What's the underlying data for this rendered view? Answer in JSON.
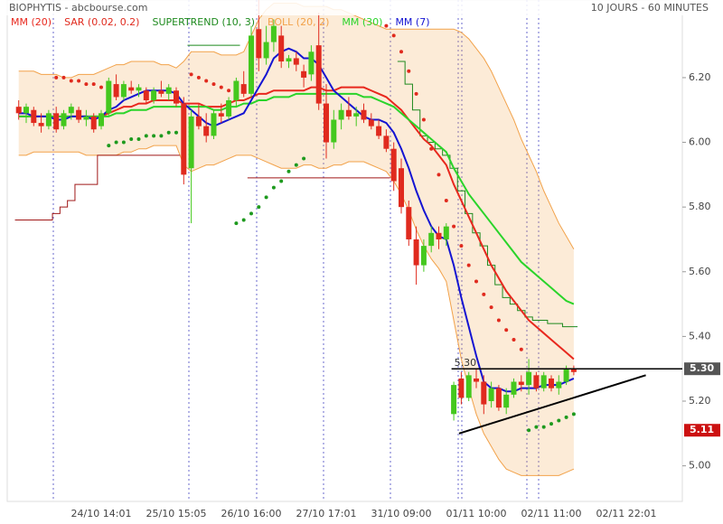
{
  "header": {
    "title": "BIOPHYTIS - abcbourse.com",
    "period": "10 JOURS - 60 MINUTES"
  },
  "chart_data": {
    "type": "candlestick",
    "categories": [
      null,
      null,
      null,
      null,
      null,
      null,
      null,
      null,
      null,
      null,
      null,
      "24/10 14:01",
      null,
      null,
      null,
      null,
      null,
      null,
      null,
      null,
      null,
      "25/10 15:05",
      null,
      null,
      null,
      null,
      null,
      null,
      null,
      null,
      null,
      "26/10 16:00",
      null,
      null,
      null,
      null,
      null,
      null,
      null,
      null,
      null,
      "27/10 17:01",
      null,
      null,
      null,
      null,
      null,
      null,
      null,
      null,
      null,
      "31/10 09:00",
      null,
      null,
      null,
      null,
      null,
      null,
      null,
      null,
      null,
      "01/11 10:00",
      null,
      null,
      null,
      null,
      null,
      null,
      null,
      null,
      null,
      "02/11 11:00",
      null,
      null,
      null,
      null,
      null,
      null,
      null,
      null,
      null,
      "02/11 22:01",
      null,
      null,
      null,
      null
    ],
    "open": [
      6.11,
      6.09,
      6.1,
      6.06,
      6.05,
      6.09,
      6.05,
      6.09,
      6.1,
      6.07,
      6.08,
      6.05,
      6.09,
      6.18,
      6.14,
      6.17,
      6.16,
      6.16,
      6.13,
      6.16,
      6.15,
      6.16,
      6.12,
      5.92,
      6.08,
      6.05,
      6.02,
      6.09,
      6.08,
      6.13,
      6.18,
      6.15,
      6.35,
      6.26,
      6.31,
      6.33,
      6.25,
      6.26,
      6.22,
      6.21,
      6.3,
      6.12,
      6.0,
      6.07,
      6.1,
      6.08,
      6.1,
      6.07,
      6.05,
      6.02,
      5.98,
      5.92,
      5.8,
      5.7,
      5.62,
      5.68,
      5.72,
      5.7,
      5.16,
      5.27,
      5.21,
      5.27,
      5.26,
      5.2,
      5.24,
      5.18,
      5.22,
      5.26,
      5.25,
      5.28,
      5.24,
      5.27,
      5.24,
      5.26,
      5.3,
      null,
      null,
      null,
      null,
      null,
      null,
      null,
      null,
      null,
      null,
      null
    ],
    "high": [
      6.13,
      6.12,
      6.11,
      6.09,
      6.1,
      6.11,
      6.1,
      6.12,
      6.11,
      6.1,
      6.09,
      6.1,
      6.2,
      6.21,
      6.19,
      6.19,
      6.18,
      6.17,
      6.17,
      6.19,
      6.18,
      6.17,
      6.14,
      6.1,
      6.12,
      6.09,
      6.1,
      6.12,
      6.14,
      6.2,
      6.22,
      6.36,
      6.44,
      6.36,
      6.38,
      6.36,
      6.27,
      6.28,
      6.24,
      6.3,
      6.4,
      6.18,
      6.1,
      6.12,
      6.14,
      6.11,
      6.12,
      6.09,
      6.07,
      6.04,
      6.0,
      5.95,
      5.82,
      5.74,
      5.7,
      5.74,
      5.74,
      5.75,
      5.26,
      5.29,
      5.29,
      5.3,
      5.28,
      5.26,
      5.25,
      5.24,
      5.27,
      5.28,
      5.33,
      5.29,
      5.29,
      5.28,
      5.28,
      5.31,
      5.31,
      null,
      null,
      null,
      null,
      null,
      null,
      null,
      null,
      null,
      null,
      null
    ],
    "low": [
      6.07,
      6.06,
      6.05,
      6.03,
      6.04,
      6.03,
      6.04,
      6.07,
      6.06,
      6.05,
      6.03,
      6.04,
      6.08,
      6.13,
      6.13,
      6.15,
      6.14,
      6.12,
      6.12,
      6.14,
      6.13,
      6.11,
      5.87,
      5.75,
      6.04,
      6.0,
      6.01,
      6.06,
      6.07,
      6.11,
      6.14,
      6.14,
      6.22,
      6.24,
      6.28,
      6.23,
      6.23,
      6.22,
      6.17,
      6.19,
      6.1,
      5.95,
      5.98,
      6.04,
      6.07,
      6.05,
      6.06,
      6.04,
      6.01,
      5.97,
      5.85,
      5.78,
      5.68,
      5.56,
      5.6,
      5.66,
      5.67,
      5.68,
      5.14,
      5.19,
      5.2,
      5.24,
      5.16,
      5.18,
      5.17,
      5.16,
      5.21,
      5.23,
      5.22,
      5.23,
      5.23,
      5.23,
      5.22,
      5.25,
      5.28,
      null,
      null,
      null,
      null,
      null,
      null,
      null,
      null,
      null,
      null,
      null
    ],
    "close": [
      6.09,
      6.11,
      6.06,
      6.05,
      6.09,
      6.04,
      6.09,
      6.11,
      6.07,
      6.08,
      6.04,
      6.09,
      6.19,
      6.14,
      6.18,
      6.16,
      6.17,
      6.13,
      6.16,
      6.15,
      6.17,
      6.12,
      5.9,
      6.08,
      6.05,
      6.02,
      6.09,
      6.08,
      6.13,
      6.19,
      6.15,
      6.33,
      6.26,
      6.31,
      6.36,
      6.25,
      6.26,
      6.24,
      6.2,
      6.28,
      6.12,
      6.0,
      6.07,
      6.1,
      6.08,
      6.09,
      6.07,
      6.05,
      6.02,
      5.98,
      5.88,
      5.8,
      5.7,
      5.62,
      5.68,
      5.72,
      5.7,
      5.74,
      5.25,
      5.21,
      5.28,
      5.26,
      5.19,
      5.24,
      5.18,
      5.22,
      5.26,
      5.25,
      5.29,
      5.24,
      5.28,
      5.24,
      5.26,
      5.3,
      5.29,
      null,
      null,
      null,
      null,
      null,
      null,
      null,
      null,
      null,
      null,
      null
    ],
    "up_color": "#44c81e",
    "down_color": "#e02a1e",
    "ylim": [
      4.89,
      6.44
    ],
    "yticks": [
      {
        "value": 5.0,
        "label": "5.00"
      },
      {
        "value": 5.2,
        "label": "5.20"
      },
      {
        "value": 5.4,
        "label": "5.40"
      },
      {
        "value": 5.6,
        "label": "5.60"
      },
      {
        "value": 5.8,
        "label": "5.80"
      },
      {
        "value": 6.0,
        "label": "6.00"
      },
      {
        "value": 6.2,
        "label": "6.20"
      }
    ],
    "indicators": [
      {
        "name": "MM (20)",
        "kind": "line",
        "color": "#e8281e",
        "values": [
          6.08,
          6.08,
          6.08,
          6.08,
          6.08,
          6.08,
          6.08,
          6.08,
          6.08,
          6.08,
          6.08,
          6.08,
          6.09,
          6.1,
          6.11,
          6.11,
          6.12,
          6.12,
          6.13,
          6.13,
          6.13,
          6.13,
          6.12,
          6.12,
          6.12,
          6.11,
          6.11,
          6.11,
          6.12,
          6.13,
          6.13,
          6.14,
          6.15,
          6.15,
          6.16,
          6.16,
          6.16,
          6.16,
          6.16,
          6.17,
          6.17,
          6.16,
          6.16,
          6.17,
          6.17,
          6.17,
          6.17,
          6.16,
          6.15,
          6.14,
          6.12,
          6.1,
          6.07,
          6.04,
          6.01,
          5.99,
          5.96,
          5.93,
          5.87,
          5.82,
          5.77,
          5.72,
          5.67,
          5.62,
          5.58,
          5.54,
          5.51,
          5.48,
          5.45,
          5.43,
          5.41,
          5.39,
          5.37,
          5.35,
          5.33,
          null,
          null,
          null,
          null,
          null,
          null,
          null,
          null,
          null,
          null,
          null
        ]
      },
      {
        "name": "SAR (0.02, 0.2)",
        "kind": "dots",
        "color": "#e02a1e",
        "color_below": "#1e9a1e",
        "values": [
          null,
          null,
          null,
          null,
          null,
          6.2,
          6.2,
          6.19,
          6.19,
          6.18,
          6.18,
          6.17,
          5.99,
          6.0,
          6.0,
          6.01,
          6.01,
          6.02,
          6.02,
          6.02,
          6.03,
          6.03,
          6.03,
          6.21,
          6.2,
          6.19,
          6.18,
          6.17,
          6.16,
          5.75,
          5.76,
          5.78,
          5.8,
          5.83,
          5.86,
          5.88,
          5.91,
          5.93,
          5.95,
          null,
          null,
          null,
          null,
          null,
          null,
          null,
          null,
          null,
          null,
          6.36,
          6.33,
          6.28,
          6.22,
          6.15,
          6.07,
          5.98,
          5.9,
          5.82,
          5.74,
          5.68,
          5.62,
          5.57,
          5.53,
          5.49,
          5.45,
          5.42,
          5.39,
          5.36,
          5.11,
          5.12,
          5.12,
          5.13,
          5.14,
          5.15,
          5.16,
          null,
          null,
          null,
          null,
          null,
          null,
          null,
          null,
          null,
          null,
          null
        ]
      },
      {
        "name": "SUPERTREND (10, 3)",
        "kind": "step",
        "color": "#1e8a1e",
        "color_below": "#a01818",
        "values": [
          5.76,
          5.76,
          5.76,
          5.76,
          5.76,
          5.78,
          5.8,
          5.82,
          5.87,
          5.87,
          5.87,
          5.96,
          5.96,
          5.96,
          5.96,
          5.96,
          5.96,
          5.96,
          5.96,
          5.96,
          5.96,
          5.96,
          null,
          6.3,
          6.3,
          6.3,
          6.3,
          6.3,
          6.3,
          6.3,
          null,
          5.89,
          5.89,
          5.89,
          5.89,
          5.89,
          5.89,
          5.89,
          5.89,
          5.89,
          5.89,
          5.89,
          5.89,
          5.89,
          5.89,
          5.89,
          5.89,
          5.89,
          5.89,
          5.89,
          null,
          6.25,
          6.18,
          6.1,
          6.02,
          6.0,
          5.98,
          5.96,
          5.92,
          5.85,
          5.78,
          5.72,
          5.68,
          5.62,
          5.56,
          5.52,
          5.5,
          5.48,
          5.46,
          5.45,
          5.45,
          5.44,
          5.44,
          5.43,
          5.43,
          null,
          null,
          null,
          null,
          null,
          null,
          null,
          null,
          null,
          null,
          null
        ]
      },
      {
        "name": "BOLL (20, 2)",
        "kind": "band",
        "color": "#f2a24a",
        "upper": [
          6.22,
          6.22,
          6.22,
          6.21,
          6.21,
          6.21,
          6.2,
          6.2,
          6.21,
          6.21,
          6.21,
          6.22,
          6.23,
          6.24,
          6.24,
          6.25,
          6.25,
          6.25,
          6.25,
          6.24,
          6.24,
          6.23,
          6.25,
          6.28,
          6.28,
          6.28,
          6.28,
          6.27,
          6.27,
          6.27,
          6.28,
          6.33,
          6.38,
          6.41,
          6.43,
          6.43,
          6.43,
          6.43,
          6.42,
          6.42,
          6.42,
          6.42,
          6.41,
          6.41,
          6.4,
          6.39,
          6.38,
          6.37,
          6.36,
          6.35,
          6.35,
          6.35,
          6.35,
          6.35,
          6.35,
          6.35,
          6.35,
          6.35,
          6.35,
          6.34,
          6.32,
          6.29,
          6.26,
          6.22,
          6.17,
          6.12,
          6.07,
          6.01,
          5.96,
          5.91,
          5.85,
          5.8,
          5.75,
          5.71,
          5.67,
          null,
          null,
          null,
          null,
          null,
          null,
          null,
          null,
          null,
          null,
          null
        ],
        "lower": [
          5.96,
          5.96,
          5.97,
          5.97,
          5.97,
          5.97,
          5.97,
          5.97,
          5.97,
          5.96,
          5.96,
          5.96,
          5.96,
          5.96,
          5.97,
          5.97,
          5.98,
          5.98,
          5.99,
          5.99,
          5.99,
          5.99,
          5.93,
          5.91,
          5.92,
          5.93,
          5.93,
          5.94,
          5.95,
          5.96,
          5.96,
          5.96,
          5.95,
          5.94,
          5.93,
          5.92,
          5.92,
          5.92,
          5.93,
          5.93,
          5.92,
          5.92,
          5.93,
          5.93,
          5.94,
          5.94,
          5.94,
          5.93,
          5.92,
          5.91,
          5.88,
          5.84,
          5.79,
          5.73,
          5.68,
          5.64,
          5.61,
          5.57,
          5.45,
          5.33,
          5.24,
          5.16,
          5.1,
          5.06,
          5.02,
          4.99,
          4.98,
          4.97,
          4.97,
          4.97,
          4.97,
          4.97,
          4.97,
          4.98,
          4.99,
          null,
          null,
          null,
          null,
          null,
          null,
          null,
          null,
          null,
          null,
          null
        ]
      },
      {
        "name": "MM (30)",
        "kind": "line",
        "color": "#2ad42a",
        "values": [
          6.08,
          6.08,
          6.08,
          6.08,
          6.08,
          6.08,
          6.08,
          6.08,
          6.08,
          6.08,
          6.08,
          6.08,
          6.08,
          6.09,
          6.09,
          6.1,
          6.1,
          6.1,
          6.11,
          6.11,
          6.11,
          6.11,
          6.11,
          6.11,
          6.11,
          6.11,
          6.1,
          6.1,
          6.11,
          6.11,
          6.12,
          6.12,
          6.13,
          6.13,
          6.14,
          6.14,
          6.14,
          6.15,
          6.15,
          6.15,
          6.15,
          6.15,
          6.15,
          6.15,
          6.15,
          6.15,
          6.14,
          6.14,
          6.13,
          6.12,
          6.11,
          6.09,
          6.07,
          6.05,
          6.03,
          6.01,
          5.99,
          5.97,
          5.92,
          5.88,
          5.84,
          5.81,
          5.78,
          5.75,
          5.72,
          5.69,
          5.66,
          5.63,
          5.61,
          5.59,
          5.57,
          5.55,
          5.53,
          5.51,
          5.5,
          null,
          null,
          null,
          null,
          null,
          null,
          null,
          null,
          null,
          null,
          null
        ]
      },
      {
        "name": "MM (7)",
        "kind": "line",
        "color": "#1414d2",
        "values": [
          6.09,
          6.09,
          6.08,
          6.08,
          6.08,
          6.07,
          6.07,
          6.08,
          6.08,
          6.08,
          6.07,
          6.08,
          6.1,
          6.11,
          6.13,
          6.14,
          6.15,
          6.16,
          6.16,
          6.16,
          6.16,
          6.15,
          6.12,
          6.1,
          6.08,
          6.06,
          6.05,
          6.06,
          6.07,
          6.08,
          6.09,
          6.13,
          6.17,
          6.21,
          6.26,
          6.28,
          6.29,
          6.28,
          6.26,
          6.26,
          6.24,
          6.2,
          6.16,
          6.14,
          6.12,
          6.1,
          6.08,
          6.07,
          6.07,
          6.06,
          6.03,
          5.98,
          5.92,
          5.85,
          5.79,
          5.74,
          5.71,
          5.7,
          5.62,
          5.52,
          5.43,
          5.34,
          5.26,
          5.24,
          5.24,
          5.23,
          5.23,
          5.24,
          5.24,
          5.24,
          5.25,
          5.25,
          5.25,
          5.26,
          5.27,
          null,
          null,
          null,
          null,
          null,
          null,
          null,
          null,
          null,
          null,
          null
        ]
      }
    ],
    "levels": [
      {
        "value": 5.3,
        "label": "5.30",
        "start": 57.7
      }
    ],
    "trendline": {
      "x": [
        58.7,
        83.6
      ],
      "y": [
        5.1,
        5.28
      ]
    },
    "price_tags": [
      {
        "value": 5.3,
        "label": "5.30",
        "color": "#555555"
      },
      {
        "value": 5.11,
        "label": "5.11",
        "color": "#cc1111"
      }
    ]
  }
}
